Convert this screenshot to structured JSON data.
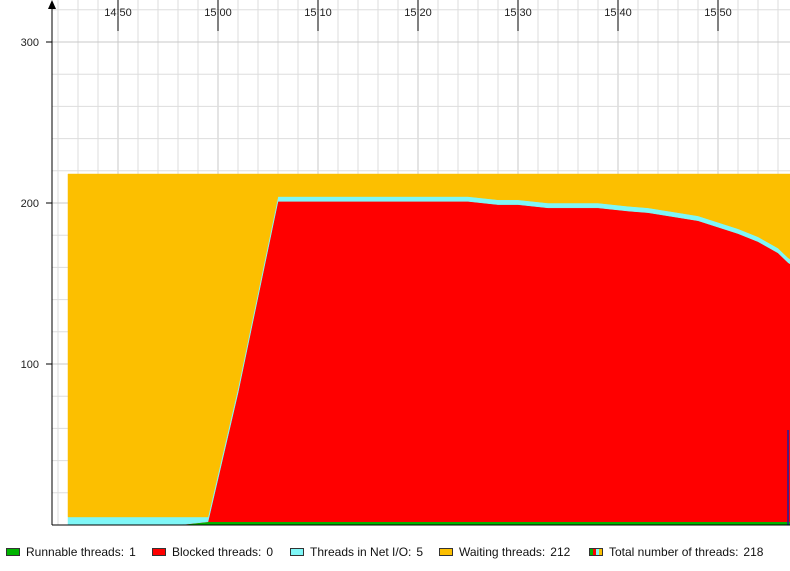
{
  "chart_data": {
    "type": "area",
    "stacked": true,
    "x_ticks": [
      "14:50",
      "15:00",
      "15:10",
      "15:20",
      "15:30",
      "15:40",
      "15:50"
    ],
    "y_ticks": [
      100,
      200,
      300
    ],
    "x_range": [
      "14:44",
      "15:58"
    ],
    "ylim": [
      0,
      325
    ],
    "grid": true,
    "x": [
      "14:45",
      "14:51",
      "14:56",
      "14:59",
      "15:02",
      "15:06",
      "15:10",
      "15:15",
      "15:20",
      "15:25",
      "15:28",
      "15:30",
      "15:33",
      "15:36",
      "15:38",
      "15:41",
      "15:43",
      "15:45",
      "15:48",
      "15:50",
      "15:52",
      "15:54",
      "15:56",
      "15:57",
      "15:58"
    ],
    "series": [
      {
        "key": "runnable",
        "color": "#00b400",
        "values": [
          0,
          0,
          0,
          2,
          2,
          2,
          2,
          2,
          2,
          2,
          2,
          2,
          2,
          2,
          2,
          2,
          2,
          2,
          2,
          2,
          2,
          2,
          2,
          2,
          2
        ]
      },
      {
        "key": "blocked",
        "color": "#ff0000",
        "values": [
          0,
          0,
          0,
          0,
          80,
          199,
          199,
          199,
          199,
          199,
          197,
          197,
          195,
          195,
          195,
          193,
          192,
          190,
          187,
          183,
          179,
          174,
          167,
          161,
          157
        ]
      },
      {
        "key": "netio",
        "color": "#7ff7f7",
        "values": [
          5,
          5,
          5,
          3,
          3,
          3,
          3,
          3,
          3,
          3,
          3,
          3,
          3,
          3,
          3,
          3,
          3,
          3,
          3,
          3,
          3,
          3,
          3,
          3,
          3
        ]
      },
      {
        "key": "waiting",
        "color": "#fcbf00",
        "values": [
          213,
          213,
          213,
          213,
          133,
          14,
          14,
          14,
          14,
          14,
          16,
          16,
          18,
          18,
          18,
          20,
          21,
          23,
          26,
          30,
          34,
          39,
          46,
          52,
          56
        ]
      }
    ]
  },
  "legend": [
    {
      "label": "Runnable threads:",
      "value": "1",
      "color": "#00b400",
      "swatch": "solid"
    },
    {
      "label": "Blocked threads:",
      "value": "0",
      "color": "#ff0000",
      "swatch": "solid"
    },
    {
      "label": "Threads in Net I/O:",
      "value": "5",
      "color": "#7ff7f7",
      "swatch": "solid"
    },
    {
      "label": "Waiting threads:",
      "value": "212",
      "color": "#fcbf00",
      "swatch": "solid"
    },
    {
      "label": "Total number of threads:",
      "value": "218",
      "color": "",
      "swatch": "multi"
    }
  ]
}
